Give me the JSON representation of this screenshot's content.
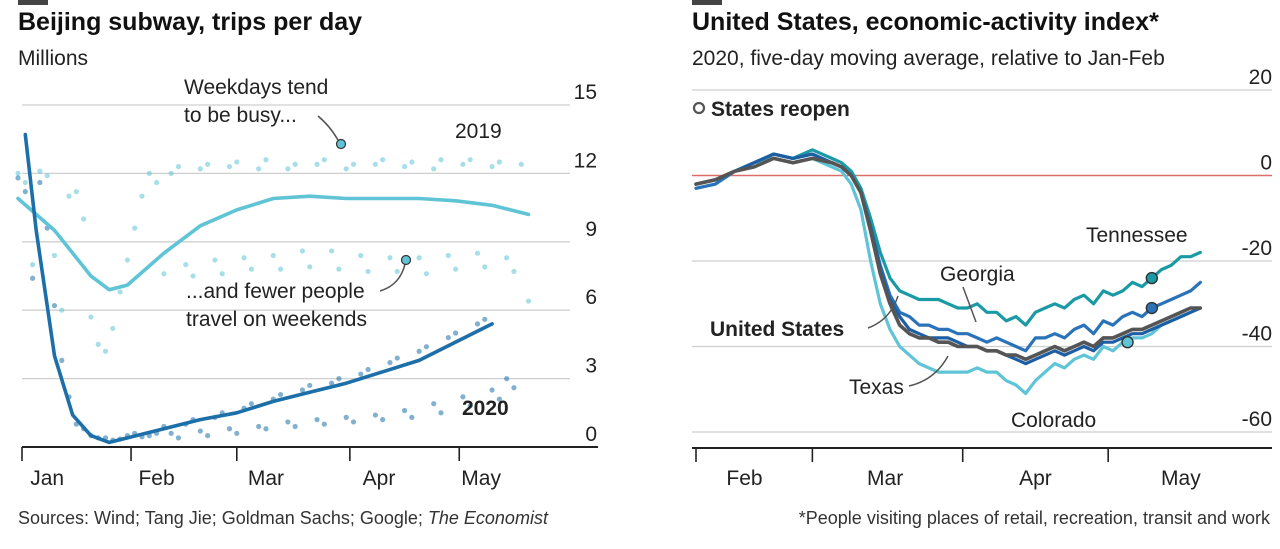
{
  "colors": {
    "light": "#5fc4d6",
    "dark": "#1c6fa8",
    "teal": "#1a9aa5",
    "us": "#555555",
    "zero": "#e06b6b",
    "grid": "#cfcfcf",
    "tag": "#555555"
  },
  "left": {
    "title": "Beijing subway, trips per day",
    "subtitle": "Millions",
    "source_prefix": "Sources: Wind; Tang Jie; Goldman Sachs; Google; ",
    "source_italic": "The Economist",
    "ann_busy_1": "Weekdays tend",
    "ann_busy_2": "to be busy...",
    "ann_weekend_1": "...and fewer people",
    "ann_weekend_2": "travel on weekends",
    "label_2019": "2019",
    "label_2020": "2020",
    "chart_data": {
      "type": "line",
      "title": "Beijing subway, trips per day",
      "ylabel": "Millions",
      "x_unit": "day of year (Jan 1 = 0)",
      "xlim": [
        0,
        150
      ],
      "ylim": [
        0,
        15
      ],
      "yticks": [
        "0",
        "3",
        "6",
        "9",
        "12",
        "15"
      ],
      "xticks": [
        {
          "label": "Jan",
          "x": 8
        },
        {
          "label": "Feb",
          "x": 38
        },
        {
          "label": "Mar",
          "x": 68
        },
        {
          "label": "Apr",
          "x": 99
        },
        {
          "label": "May",
          "x": 127
        }
      ],
      "series": [
        {
          "name": "2019",
          "style": "trend",
          "x": [
            0,
            10,
            20,
            25,
            30,
            40,
            50,
            60,
            70,
            80,
            90,
            100,
            110,
            120,
            130,
            140
          ],
          "y": [
            10.9,
            9.5,
            7.5,
            6.9,
            7.1,
            8.5,
            9.7,
            10.4,
            10.9,
            11.0,
            10.9,
            10.9,
            10.9,
            10.8,
            10.6,
            10.2
          ]
        },
        {
          "name": "2020",
          "style": "trend",
          "x": [
            2,
            5,
            10,
            15,
            20,
            25,
            30,
            40,
            50,
            60,
            70,
            80,
            90,
            100,
            110,
            120,
            130
          ],
          "y": [
            13.7,
            9.5,
            4.0,
            1.4,
            0.5,
            0.2,
            0.4,
            0.8,
            1.2,
            1.5,
            2.0,
            2.4,
            2.8,
            3.3,
            3.8,
            4.6,
            5.4
          ]
        },
        {
          "name": "2019 daily",
          "style": "dots",
          "x": [
            0,
            2,
            4,
            6,
            8,
            10,
            12,
            14,
            16,
            18,
            20,
            22,
            24,
            26,
            28,
            30,
            32,
            34,
            36,
            38,
            40,
            42,
            44,
            46,
            48,
            50,
            52,
            54,
            56,
            58,
            60,
            62,
            64,
            66,
            68,
            70,
            72,
            74,
            76,
            78,
            80,
            82,
            84,
            86,
            88,
            90,
            92,
            94,
            96,
            98,
            100,
            102,
            104,
            106,
            108,
            110,
            112,
            114,
            116,
            118,
            120,
            122,
            124,
            126,
            128,
            130,
            132,
            134,
            136,
            138,
            140
          ],
          "y": [
            12,
            11.6,
            8,
            12.1,
            11.9,
            8.4,
            6,
            11,
            11.2,
            10,
            5.7,
            4.5,
            4.2,
            5.2,
            6.8,
            8.2,
            9.6,
            11,
            12,
            11.6,
            7.6,
            12,
            12.3,
            8,
            7.5,
            12.2,
            12.4,
            8.2,
            7.6,
            12.3,
            12.5,
            8.3,
            7.8,
            12.2,
            12.6,
            8.4,
            7.8,
            12.2,
            12.4,
            8.6,
            7.9,
            12.4,
            12.6,
            8.6,
            7.8,
            12.2,
            12.4,
            8.4,
            7.7,
            12.4,
            12.6,
            8.3,
            7.7,
            12.3,
            12.5,
            8.3,
            7.6,
            12.2,
            12.6,
            8.4,
            7.8,
            12.4,
            12.6,
            8.5,
            7.9,
            12.3,
            12.5,
            8.3,
            7.7,
            12.4,
            6.4
          ]
        },
        {
          "name": "2020 daily",
          "style": "dots",
          "x": [
            0,
            2,
            4,
            6,
            8,
            10,
            12,
            14,
            16,
            18,
            20,
            22,
            24,
            26,
            28,
            30,
            32,
            34,
            36,
            38,
            40,
            42,
            44,
            46,
            48,
            50,
            52,
            54,
            56,
            58,
            60,
            62,
            64,
            66,
            68,
            70,
            72,
            74,
            76,
            78,
            80,
            82,
            84,
            86,
            88,
            90,
            92,
            94,
            96,
            98,
            100,
            102,
            104,
            106,
            108,
            110,
            112,
            114,
            116,
            118,
            120,
            122,
            124,
            126,
            128,
            130,
            132,
            134,
            136
          ],
          "y": [
            11.8,
            11.2,
            7.4,
            11.6,
            9.6,
            6.2,
            3.8,
            2.2,
            1.0,
            0.8,
            0.5,
            0.4,
            0.4,
            0.3,
            0.35,
            0.5,
            0.6,
            0.45,
            0.5,
            0.6,
            0.9,
            0.6,
            0.4,
            1.0,
            1.2,
            0.7,
            0.5,
            1.3,
            1.5,
            0.8,
            0.6,
            1.7,
            1.9,
            0.9,
            0.8,
            2.1,
            2.3,
            1.1,
            0.9,
            2.5,
            2.7,
            1.2,
            1.0,
            2.8,
            3.0,
            1.3,
            1.1,
            3.2,
            3.4,
            1.4,
            1.2,
            3.7,
            3.9,
            1.6,
            1.3,
            4.2,
            4.4,
            1.9,
            1.5,
            4.8,
            5.0,
            2.2,
            1.8,
            5.4,
            5.6,
            2.5,
            2.1,
            3.0,
            2.6
          ]
        }
      ]
    }
  },
  "right": {
    "title": "United States, economic-activity index*",
    "subtitle": "2020, five-day moving average, relative to Jan-Feb",
    "legend_label": "States reopen",
    "footnote": "*People visiting places of retail, recreation, transit and work",
    "chart_data": {
      "type": "line",
      "title": "United States, economic-activity index*",
      "ylabel": "",
      "x_unit": "day of year (Jan 1 = 0)",
      "xlim": [
        36,
        142
      ],
      "ylim": [
        -60,
        20
      ],
      "yticks": [
        "20",
        "0",
        "-20",
        "-40",
        "-60"
      ],
      "xticks": [
        {
          "label": "Feb",
          "x": 46
        },
        {
          "label": "Mar",
          "x": 75
        },
        {
          "label": "Apr",
          "x": 106
        },
        {
          "label": "May",
          "x": 136
        }
      ],
      "series": [
        {
          "name": "Tennessee",
          "label": "Tennessee",
          "reopen_x": 130,
          "x": [
            36,
            40,
            44,
            48,
            52,
            56,
            60,
            64,
            66,
            68,
            70,
            72,
            74,
            76,
            78,
            80,
            82,
            84,
            86,
            88,
            90,
            92,
            94,
            96,
            98,
            100,
            102,
            104,
            106,
            108,
            110,
            112,
            114,
            116,
            118,
            120,
            122,
            124,
            126,
            128,
            130,
            132,
            134,
            136,
            138,
            140
          ],
          "y": [
            -2,
            -1,
            1,
            3,
            5,
            4,
            6,
            4,
            3,
            1,
            -3,
            -10,
            -18,
            -24,
            -27,
            -28,
            -29,
            -29,
            -29,
            -30,
            -31,
            -31,
            -30,
            -32,
            -32,
            -34,
            -33,
            -35,
            -32,
            -31,
            -30,
            -31,
            -29,
            -28,
            -30,
            -27,
            -28,
            -27,
            -25,
            -26,
            -24,
            -22,
            -21,
            -19,
            -19,
            -18
          ]
        },
        {
          "name": "Georgia",
          "label": "Georgia",
          "reopen_x": 130,
          "x": [
            36,
            40,
            44,
            48,
            52,
            56,
            60,
            64,
            66,
            68,
            70,
            72,
            74,
            76,
            78,
            80,
            82,
            84,
            86,
            88,
            90,
            92,
            94,
            96,
            98,
            100,
            102,
            104,
            106,
            108,
            110,
            112,
            114,
            116,
            118,
            120,
            122,
            124,
            126,
            128,
            130,
            132,
            134,
            136,
            138,
            140
          ],
          "y": [
            -3,
            -2,
            1,
            3,
            5,
            4,
            5,
            3,
            2,
            0,
            -4,
            -12,
            -21,
            -28,
            -32,
            -33,
            -35,
            -35,
            -36,
            -36,
            -37,
            -37,
            -38,
            -39,
            -38,
            -39,
            -40,
            -41,
            -38,
            -38,
            -37,
            -38,
            -36,
            -35,
            -37,
            -34,
            -35,
            -33,
            -32,
            -33,
            -31,
            -30,
            -29,
            -28,
            -27,
            -25
          ]
        },
        {
          "name": "United States",
          "label": "United States",
          "x": [
            36,
            40,
            44,
            48,
            52,
            56,
            60,
            64,
            66,
            68,
            70,
            72,
            74,
            76,
            78,
            80,
            82,
            84,
            86,
            88,
            90,
            92,
            94,
            96,
            98,
            100,
            102,
            104,
            106,
            108,
            110,
            112,
            114,
            116,
            118,
            120,
            122,
            124,
            126,
            128,
            130,
            132,
            134,
            136,
            138,
            140
          ],
          "y": [
            -2,
            -1,
            1,
            2,
            4,
            3,
            4,
            3,
            2,
            0,
            -4,
            -13,
            -23,
            -30,
            -35,
            -37,
            -38,
            -38,
            -39,
            -39,
            -40,
            -40,
            -40,
            -41,
            -41,
            -42,
            -42,
            -43,
            -42,
            -41,
            -40,
            -41,
            -40,
            -39,
            -40,
            -38,
            -38,
            -37,
            -36,
            -36,
            -35,
            -34,
            -33,
            -32,
            -31,
            -31
          ]
        },
        {
          "name": "Texas",
          "label": "Texas",
          "x": [
            36,
            40,
            44,
            48,
            52,
            56,
            60,
            64,
            66,
            68,
            70,
            72,
            74,
            76,
            78,
            80,
            82,
            84,
            86,
            88,
            90,
            92,
            94,
            96,
            98,
            100,
            102,
            104,
            106,
            108,
            110,
            112,
            114,
            116,
            118,
            120,
            122,
            124,
            126,
            128,
            130,
            132,
            134,
            136,
            138,
            140
          ],
          "y": [
            -2,
            -1,
            1,
            3,
            5,
            4,
            5,
            3,
            2,
            0,
            -4,
            -12,
            -22,
            -29,
            -33,
            -36,
            -37,
            -38,
            -38,
            -38,
            -39,
            -40,
            -40,
            -41,
            -41,
            -42,
            -43,
            -44,
            -43,
            -42,
            -41,
            -42,
            -41,
            -40,
            -41,
            -39,
            -39,
            -38,
            -37,
            -37,
            -36,
            -35,
            -34,
            -33,
            -32,
            -31
          ]
        },
        {
          "name": "Colorado",
          "label": "Colorado",
          "reopen_x": 125,
          "x": [
            36,
            40,
            44,
            48,
            52,
            56,
            60,
            64,
            66,
            68,
            70,
            72,
            74,
            76,
            78,
            80,
            82,
            84,
            86,
            88,
            90,
            92,
            94,
            96,
            98,
            100,
            102,
            104,
            106,
            108,
            110,
            112,
            114,
            116,
            118,
            120,
            122,
            124,
            126,
            128,
            130,
            132,
            134,
            136,
            138,
            140
          ],
          "y": [
            -3,
            -2,
            1,
            3,
            4,
            3,
            4,
            2,
            1,
            -2,
            -8,
            -20,
            -30,
            -36,
            -40,
            -42,
            -44,
            -45,
            -46,
            -46,
            -46,
            -46,
            -45,
            -46,
            -46,
            -48,
            -49,
            -51,
            -48,
            -46,
            -44,
            -45,
            -43,
            -42,
            -43,
            -40,
            -41,
            -39,
            -38,
            -38,
            -37,
            -35,
            -34,
            -33,
            -32,
            -31
          ]
        }
      ]
    }
  }
}
